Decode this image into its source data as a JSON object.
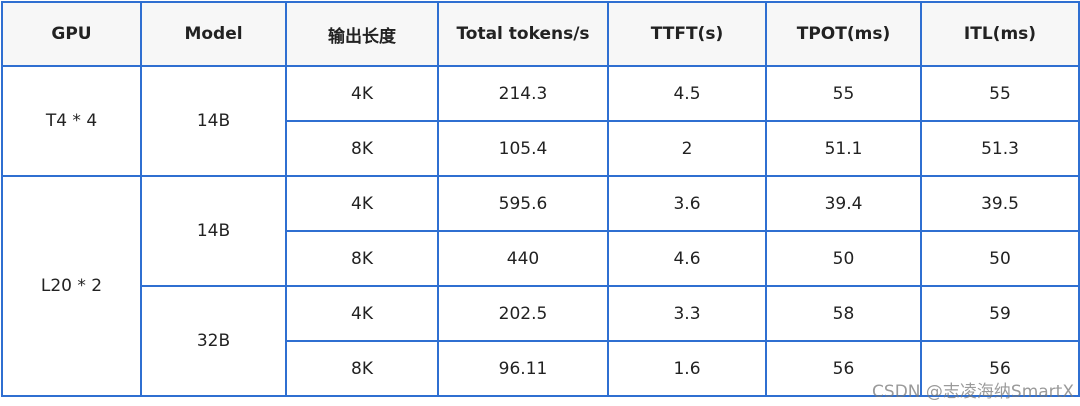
{
  "table": {
    "header": [
      "GPU",
      "Model",
      "输出长度",
      "Total tokens/s",
      "TTFT(s)",
      "TPOT(ms)",
      "ITL(ms)"
    ],
    "rows": [
      [
        "T4 * 4",
        "14B",
        "4K",
        214.3,
        4.5,
        55,
        55
      ],
      [
        null,
        null,
        "8K",
        105.4,
        2,
        51.1,
        51.3
      ],
      [
        "L20 * 2",
        "14B",
        "4K",
        595.6,
        3.6,
        39.4,
        39.5
      ],
      [
        null,
        null,
        "8K",
        440,
        4.6,
        50,
        50
      ],
      [
        null,
        "32B",
        "4K",
        202.5,
        3.3,
        58,
        59
      ],
      [
        null,
        null,
        "8K",
        96.11,
        1.6,
        56,
        56
      ]
    ]
  },
  "watermark": "CSDN @志凌海纳SmartX"
}
